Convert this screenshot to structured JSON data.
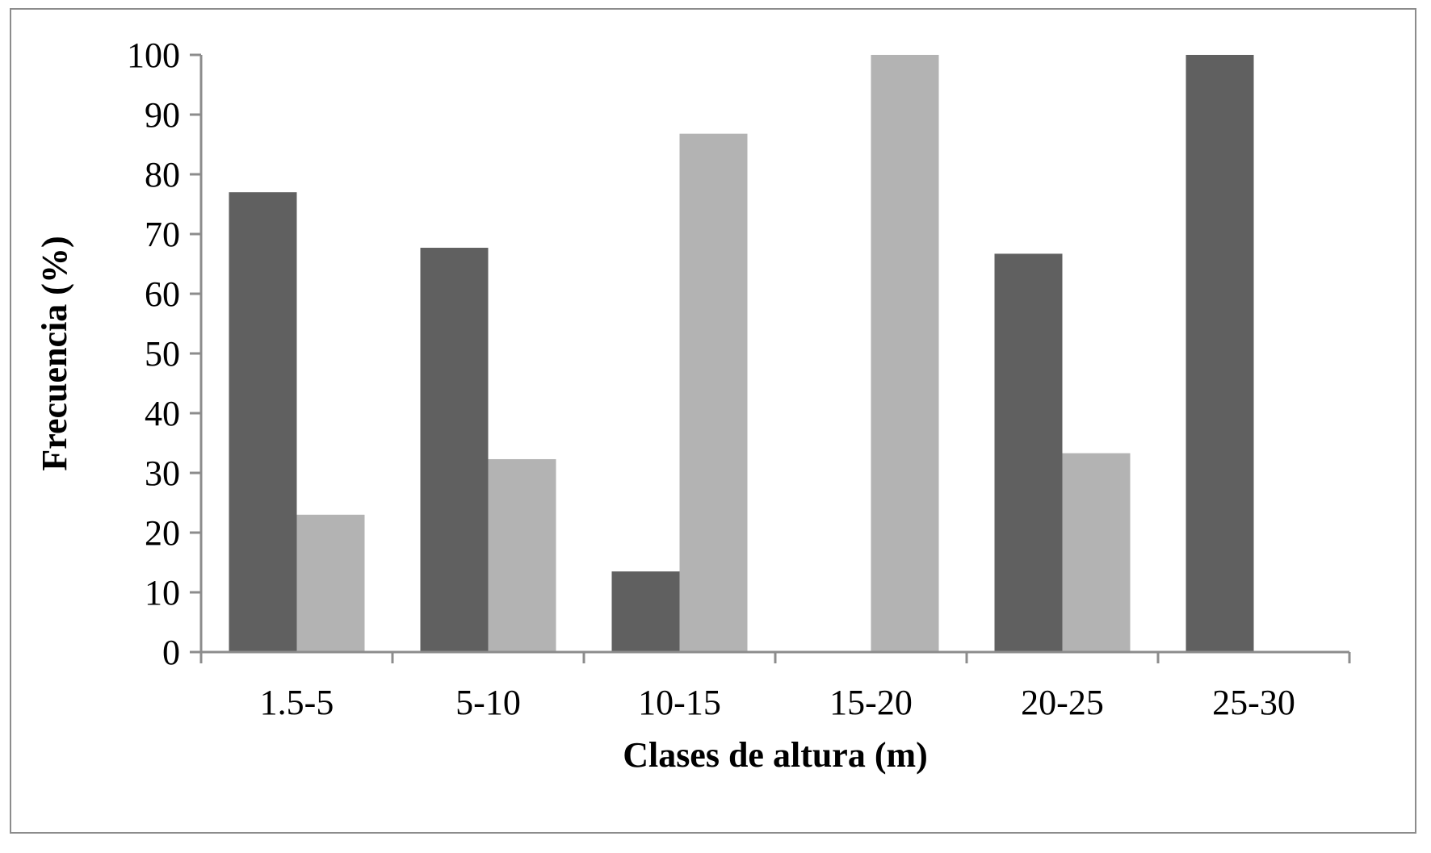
{
  "chart_data": {
    "type": "bar",
    "categories": [
      "1.5-5",
      "5-10",
      "10-15",
      "15-20",
      "20-25",
      "25-30"
    ],
    "series": [
      {
        "values": [
          77,
          67.7,
          13.5,
          0,
          66.7,
          100
        ],
        "color": "#606060"
      },
      {
        "values": [
          23,
          32.3,
          86.8,
          100,
          33.3,
          0
        ],
        "color": "#b3b3b3"
      }
    ],
    "xlabel": "Clases de altura (m)",
    "ylabel": "Frecuencia (%)",
    "ylim": [
      0,
      100
    ],
    "yticks": [
      0,
      10,
      20,
      30,
      40,
      50,
      60,
      70,
      80,
      90,
      100
    ],
    "grid": false,
    "legend": "none"
  }
}
